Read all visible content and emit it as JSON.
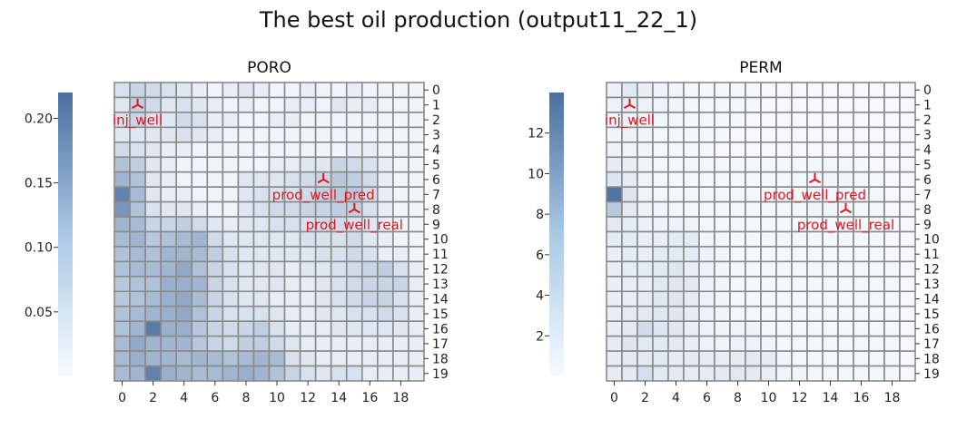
{
  "suptitle": "The best oil production (output11_22_1)",
  "colors": {
    "low": "#f7fbff",
    "high": "#4a6fa0",
    "grid": "#8a8a8a",
    "marker": "#e8141c"
  },
  "chart_data": [
    {
      "type": "heatmap",
      "title": "PORO",
      "x_ticks": [
        "0",
        "2",
        "4",
        "6",
        "8",
        "10",
        "12",
        "14",
        "16",
        "18"
      ],
      "y_ticks": [
        "0",
        "1",
        "2",
        "3",
        "4",
        "5",
        "6",
        "7",
        "8",
        "9",
        "10",
        "11",
        "12",
        "13",
        "14",
        "15",
        "16",
        "17",
        "18",
        "19"
      ],
      "colorbar": {
        "ticks": [
          "0.05",
          "0.10",
          "0.15",
          "0.20"
        ],
        "tick_values": [
          0.05,
          0.1,
          0.15,
          0.2
        ],
        "range": [
          0,
          0.22
        ]
      },
      "range": [
        0,
        0.22
      ],
      "values": [
        [
          0.04,
          0.06,
          0.05,
          0.04,
          0.03,
          0.02,
          0.01,
          0.02,
          0.03,
          0.02,
          0.01,
          0.01,
          0.02,
          0.01,
          0.01,
          0.02,
          0.01,
          0.01,
          0.01,
          0.01
        ],
        [
          0.03,
          0.07,
          0.05,
          0.03,
          0.04,
          0.03,
          0.02,
          0.01,
          0.02,
          0.01,
          0.01,
          0.02,
          0.02,
          0.01,
          0.03,
          0.02,
          0.02,
          0.01,
          0.01,
          0.01
        ],
        [
          0.04,
          0.06,
          0.04,
          0.03,
          0.05,
          0.04,
          0.02,
          0.02,
          0.01,
          0.01,
          0.02,
          0.02,
          0.01,
          0.01,
          0.01,
          0.01,
          0.01,
          0.01,
          0.01,
          0.01
        ],
        [
          0.03,
          0.03,
          0.03,
          0.03,
          0.04,
          0.03,
          0.02,
          0.01,
          0.01,
          0.01,
          0.01,
          0.01,
          0.01,
          0.01,
          0.01,
          0.01,
          0.01,
          0.01,
          0.01,
          0.01
        ],
        [
          0.05,
          0.04,
          0.03,
          0.02,
          0.02,
          0.01,
          0.01,
          0.01,
          0.01,
          0.01,
          0.01,
          0.01,
          0.01,
          0.01,
          0.01,
          0.02,
          0.02,
          0.01,
          0.01,
          0.01
        ],
        [
          0.09,
          0.07,
          0.03,
          0.02,
          0.01,
          0.01,
          0.01,
          0.01,
          0.01,
          0.01,
          0.02,
          0.02,
          0.03,
          0.03,
          0.06,
          0.05,
          0.04,
          0.02,
          0.01,
          0.01
        ],
        [
          0.11,
          0.09,
          0.03,
          0.02,
          0.01,
          0.01,
          0.01,
          0.01,
          0.03,
          0.03,
          0.03,
          0.04,
          0.05,
          0.06,
          0.08,
          0.07,
          0.05,
          0.02,
          0.01,
          0.01
        ],
        [
          0.19,
          0.1,
          0.03,
          0.02,
          0.02,
          0.01,
          0.01,
          0.01,
          0.03,
          0.04,
          0.04,
          0.04,
          0.05,
          0.07,
          0.08,
          0.08,
          0.05,
          0.02,
          0.01,
          0.01
        ],
        [
          0.16,
          0.09,
          0.04,
          0.03,
          0.03,
          0.02,
          0.01,
          0.01,
          0.03,
          0.04,
          0.05,
          0.05,
          0.06,
          0.06,
          0.07,
          0.07,
          0.04,
          0.02,
          0.01,
          0.01
        ],
        [
          0.11,
          0.1,
          0.06,
          0.06,
          0.07,
          0.05,
          0.03,
          0.02,
          0.03,
          0.03,
          0.04,
          0.04,
          0.04,
          0.05,
          0.05,
          0.04,
          0.03,
          0.02,
          0.01,
          0.01
        ],
        [
          0.1,
          0.11,
          0.08,
          0.09,
          0.1,
          0.11,
          0.05,
          0.03,
          0.03,
          0.03,
          0.03,
          0.03,
          0.04,
          0.04,
          0.04,
          0.05,
          0.03,
          0.02,
          0.01,
          0.01
        ],
        [
          0.09,
          0.1,
          0.09,
          0.11,
          0.11,
          0.1,
          0.07,
          0.04,
          0.03,
          0.03,
          0.03,
          0.03,
          0.03,
          0.04,
          0.04,
          0.05,
          0.04,
          0.02,
          0.02,
          0.01
        ],
        [
          0.09,
          0.1,
          0.1,
          0.11,
          0.13,
          0.09,
          0.06,
          0.04,
          0.03,
          0.03,
          0.03,
          0.02,
          0.03,
          0.03,
          0.04,
          0.05,
          0.06,
          0.07,
          0.04,
          0.02
        ],
        [
          0.08,
          0.09,
          0.09,
          0.12,
          0.12,
          0.11,
          0.06,
          0.04,
          0.03,
          0.03,
          0.03,
          0.02,
          0.02,
          0.03,
          0.04,
          0.05,
          0.06,
          0.06,
          0.06,
          0.02
        ],
        [
          0.08,
          0.09,
          0.1,
          0.12,
          0.13,
          0.1,
          0.06,
          0.04,
          0.03,
          0.03,
          0.02,
          0.02,
          0.02,
          0.03,
          0.04,
          0.05,
          0.06,
          0.06,
          0.04,
          0.02
        ],
        [
          0.09,
          0.1,
          0.11,
          0.12,
          0.13,
          0.09,
          0.06,
          0.04,
          0.04,
          0.04,
          0.03,
          0.02,
          0.02,
          0.03,
          0.03,
          0.04,
          0.04,
          0.05,
          0.04,
          0.02
        ],
        [
          0.09,
          0.11,
          0.2,
          0.12,
          0.12,
          0.08,
          0.06,
          0.05,
          0.06,
          0.07,
          0.04,
          0.02,
          0.02,
          0.02,
          0.03,
          0.03,
          0.03,
          0.03,
          0.03,
          0.02
        ],
        [
          0.1,
          0.13,
          0.11,
          0.11,
          0.11,
          0.08,
          0.06,
          0.05,
          0.07,
          0.07,
          0.05,
          0.03,
          0.02,
          0.02,
          0.02,
          0.02,
          0.02,
          0.02,
          0.02,
          0.02
        ],
        [
          0.1,
          0.12,
          0.11,
          0.11,
          0.1,
          0.11,
          0.1,
          0.09,
          0.1,
          0.11,
          0.1,
          0.04,
          0.03,
          0.02,
          0.02,
          0.02,
          0.02,
          0.02,
          0.02,
          0.02
        ],
        [
          0.1,
          0.11,
          0.19,
          0.12,
          0.11,
          0.1,
          0.1,
          0.11,
          0.12,
          0.11,
          0.09,
          0.06,
          0.04,
          0.03,
          0.04,
          0.04,
          0.02,
          0.02,
          0.02,
          0.02
        ]
      ],
      "annotations": [
        {
          "label": "inj_well",
          "x": 1,
          "y": 1
        },
        {
          "label": "prod_well_pred",
          "x": 13,
          "y": 6
        },
        {
          "label": "prod_well_real",
          "x": 15,
          "y": 8
        }
      ]
    },
    {
      "type": "heatmap",
      "title": "PERM",
      "x_ticks": [
        "0",
        "2",
        "4",
        "6",
        "8",
        "10",
        "12",
        "14",
        "16",
        "18"
      ],
      "y_ticks": [
        "0",
        "1",
        "2",
        "3",
        "4",
        "5",
        "6",
        "7",
        "8",
        "9",
        "10",
        "11",
        "12",
        "13",
        "14",
        "15",
        "16",
        "17",
        "18",
        "19"
      ],
      "colorbar": {
        "ticks": [
          "2",
          "4",
          "6",
          "8",
          "10",
          "12"
        ],
        "tick_values": [
          2,
          4,
          6,
          8,
          10,
          12
        ],
        "range": [
          0,
          14
        ]
      },
      "range": [
        0,
        14
      ],
      "values": [
        [
          1.0,
          1.8,
          1.2,
          0.8,
          0.5,
          0.4,
          0.3,
          0.3,
          0.3,
          0.3,
          0.2,
          0.2,
          0.2,
          0.2,
          0.2,
          0.2,
          0.2,
          0.2,
          0.2,
          0.2
        ],
        [
          0.8,
          1.5,
          0.9,
          0.6,
          0.5,
          0.4,
          0.3,
          0.3,
          0.3,
          0.3,
          0.2,
          0.2,
          0.2,
          0.2,
          0.2,
          0.2,
          0.2,
          0.2,
          0.2,
          0.2
        ],
        [
          0.6,
          1.0,
          0.7,
          0.5,
          0.4,
          0.3,
          0.3,
          0.3,
          0.3,
          0.2,
          0.2,
          0.2,
          0.2,
          0.2,
          0.2,
          0.2,
          0.2,
          0.2,
          0.2,
          0.2
        ],
        [
          0.5,
          0.8,
          0.6,
          0.4,
          0.4,
          0.3,
          0.3,
          0.3,
          0.2,
          0.2,
          0.2,
          0.2,
          0.2,
          0.2,
          0.2,
          0.2,
          0.2,
          0.2,
          0.2,
          0.2
        ],
        [
          0.9,
          0.7,
          0.5,
          0.4,
          0.3,
          0.3,
          0.3,
          0.2,
          0.2,
          0.2,
          0.2,
          0.2,
          0.2,
          0.2,
          0.2,
          0.2,
          0.2,
          0.2,
          0.2,
          0.2
        ],
        [
          1.6,
          1.2,
          0.6,
          0.4,
          0.3,
          0.3,
          0.3,
          0.3,
          0.3,
          0.3,
          0.3,
          0.3,
          0.3,
          0.3,
          0.4,
          0.4,
          0.3,
          0.2,
          0.2,
          0.2
        ],
        [
          2.2,
          1.5,
          0.7,
          0.4,
          0.3,
          0.3,
          0.3,
          0.3,
          0.3,
          0.3,
          0.3,
          0.3,
          0.4,
          0.4,
          0.5,
          0.5,
          0.4,
          0.3,
          0.2,
          0.2
        ],
        [
          13.5,
          2.0,
          0.7,
          0.4,
          0.3,
          0.3,
          0.3,
          0.3,
          0.3,
          0.3,
          0.3,
          0.3,
          0.4,
          0.5,
          0.6,
          0.5,
          0.4,
          0.3,
          0.2,
          0.2
        ],
        [
          5.0,
          1.8,
          0.8,
          0.5,
          0.4,
          0.3,
          0.3,
          0.3,
          0.3,
          0.3,
          0.3,
          0.3,
          0.4,
          0.5,
          0.5,
          0.5,
          0.4,
          0.3,
          0.2,
          0.2
        ],
        [
          1.8,
          1.5,
          1.0,
          0.8,
          0.9,
          0.7,
          0.4,
          0.3,
          0.3,
          0.3,
          0.3,
          0.3,
          0.3,
          0.4,
          0.4,
          0.4,
          0.3,
          0.3,
          0.2,
          0.2
        ],
        [
          1.5,
          1.6,
          1.2,
          1.3,
          1.5,
          1.6,
          0.6,
          0.4,
          0.3,
          0.3,
          0.3,
          0.3,
          0.3,
          0.3,
          0.3,
          0.4,
          0.3,
          0.3,
          0.2,
          0.2
        ],
        [
          1.3,
          1.5,
          1.3,
          1.6,
          1.7,
          1.5,
          0.9,
          0.5,
          0.3,
          0.3,
          0.3,
          0.3,
          0.3,
          0.3,
          0.3,
          0.3,
          0.3,
          0.3,
          0.2,
          0.2
        ],
        [
          1.3,
          1.5,
          1.5,
          1.7,
          2.0,
          1.3,
          0.8,
          0.5,
          0.3,
          0.3,
          0.3,
          0.3,
          0.3,
          0.3,
          0.3,
          0.3,
          0.4,
          0.4,
          0.3,
          0.2
        ],
        [
          1.2,
          1.3,
          1.3,
          1.8,
          1.9,
          1.7,
          0.8,
          0.5,
          0.3,
          0.3,
          0.3,
          0.3,
          0.3,
          0.3,
          0.3,
          0.3,
          0.4,
          0.4,
          0.4,
          0.2
        ],
        [
          1.2,
          1.3,
          1.5,
          1.9,
          2.0,
          1.5,
          0.8,
          0.5,
          0.3,
          0.3,
          0.3,
          0.3,
          0.3,
          0.3,
          0.3,
          0.3,
          0.4,
          0.4,
          0.3,
          0.2
        ],
        [
          1.3,
          1.5,
          1.7,
          1.9,
          2.0,
          1.4,
          0.8,
          0.5,
          0.4,
          0.4,
          0.3,
          0.3,
          0.3,
          0.3,
          0.3,
          0.3,
          0.3,
          0.3,
          0.3,
          0.2
        ],
        [
          1.3,
          1.7,
          3.0,
          2.0,
          1.9,
          1.2,
          0.8,
          0.6,
          0.7,
          0.8,
          0.4,
          0.3,
          0.3,
          0.3,
          0.3,
          0.3,
          0.3,
          0.3,
          0.3,
          0.2
        ],
        [
          1.5,
          2.0,
          1.7,
          1.7,
          1.7,
          1.2,
          0.8,
          0.6,
          0.8,
          0.8,
          0.5,
          0.3,
          0.3,
          0.3,
          0.3,
          0.3,
          0.3,
          0.3,
          0.3,
          0.2
        ],
        [
          1.5,
          1.8,
          1.7,
          1.7,
          1.5,
          1.7,
          1.5,
          1.3,
          1.5,
          1.7,
          1.5,
          0.5,
          0.3,
          0.3,
          0.3,
          0.3,
          0.3,
          0.3,
          0.3,
          0.2
        ],
        [
          1.5,
          1.7,
          2.8,
          1.8,
          1.7,
          1.5,
          1.5,
          1.7,
          1.8,
          1.7,
          1.3,
          0.7,
          0.5,
          0.3,
          0.4,
          0.4,
          0.3,
          0.3,
          0.3,
          0.2
        ]
      ],
      "annotations": [
        {
          "label": "inj_well",
          "x": 1,
          "y": 1
        },
        {
          "label": "prod_well_pred",
          "x": 13,
          "y": 6
        },
        {
          "label": "prod_well_real",
          "x": 15,
          "y": 8
        }
      ]
    }
  ]
}
